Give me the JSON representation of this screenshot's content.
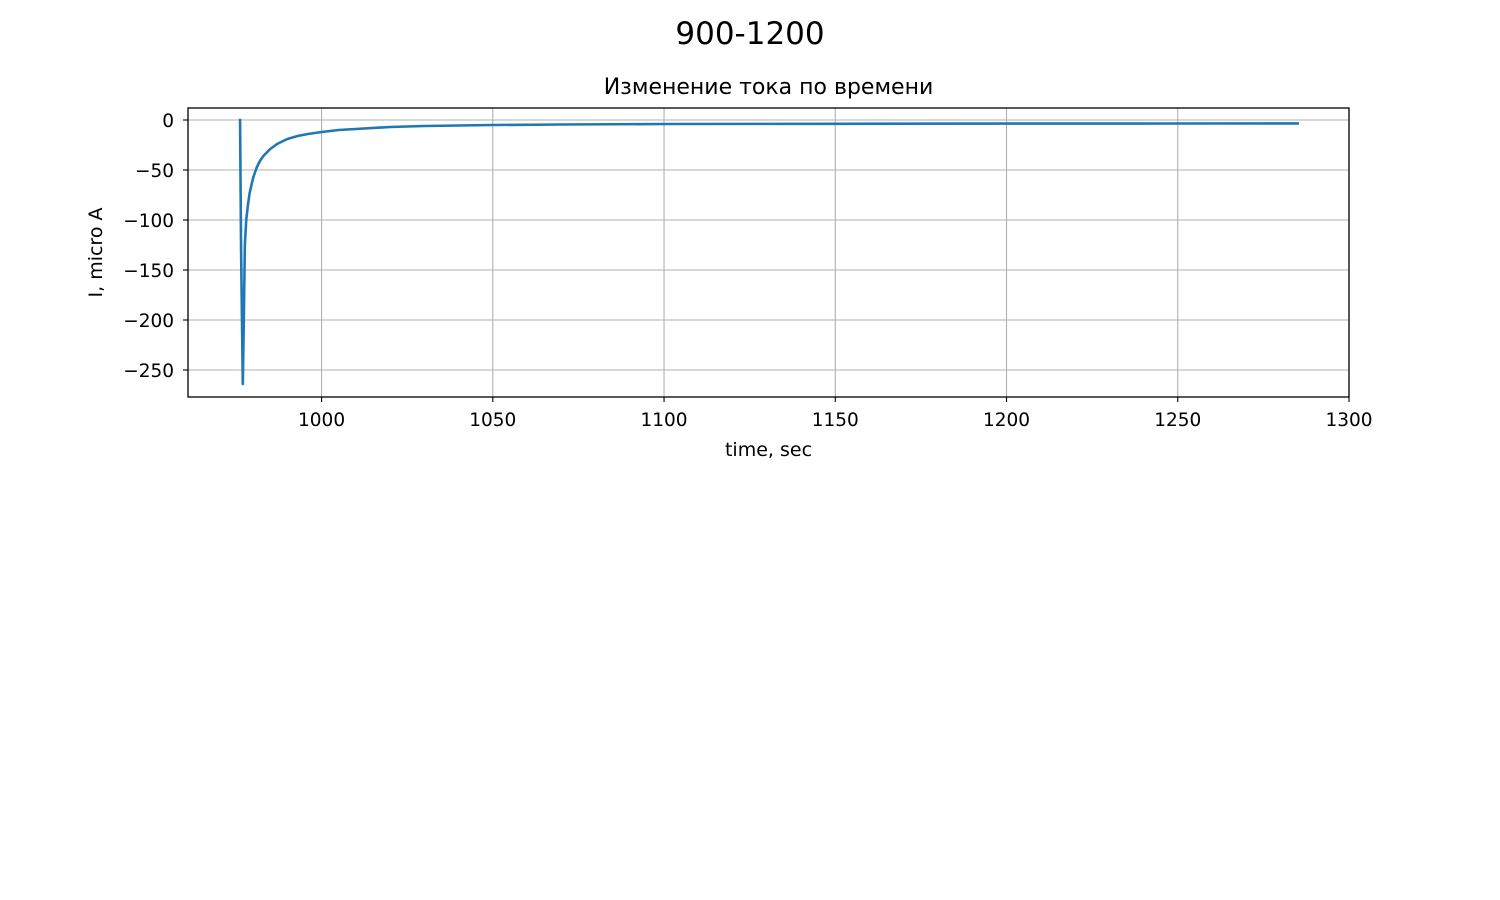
{
  "figure": {
    "suptitle": "900-1200"
  },
  "chart_data": {
    "type": "line",
    "title": "Изменение тока по времени",
    "xlabel": "time, sec",
    "ylabel": "I, micro A",
    "xlim": [
      961,
      1300
    ],
    "ylim": [
      -277,
      12
    ],
    "xticks": [
      1000,
      1050,
      1100,
      1150,
      1200,
      1250,
      1300
    ],
    "xtick_labels": [
      "1000",
      "1050",
      "1100",
      "1150",
      "1200",
      "1250",
      "1300"
    ],
    "yticks": [
      0,
      -50,
      -100,
      -150,
      -200,
      -250
    ],
    "ytick_labels": [
      "0",
      "−50",
      "−100",
      "−150",
      "−200",
      "−250"
    ],
    "grid": true,
    "legend": "none",
    "series": [
      {
        "color": "#1f77b4",
        "x": [
          976.2,
          976.5,
          977.0,
          977.3,
          977.6,
          978.0,
          978.5,
          979.0,
          980.0,
          981.0,
          982.0,
          983.0,
          985.0,
          987.0,
          990.0,
          993.0,
          996.0,
          1000.0,
          1005.0,
          1010.0,
          1020.0,
          1030.0,
          1040.0,
          1050.0,
          1070.0,
          1100.0,
          1150.0,
          1200.0,
          1250.0,
          1285.0
        ],
        "y": [
          0,
          -130,
          -264,
          -200,
          -125,
          -100,
          -85,
          -73,
          -58,
          -48,
          -41,
          -36,
          -29,
          -24,
          -19,
          -16,
          -14,
          -12,
          -10,
          -9,
          -7,
          -6,
          -5.5,
          -5,
          -4.5,
          -4,
          -3.8,
          -3.6,
          -3.5,
          -3.4
        ]
      }
    ]
  }
}
